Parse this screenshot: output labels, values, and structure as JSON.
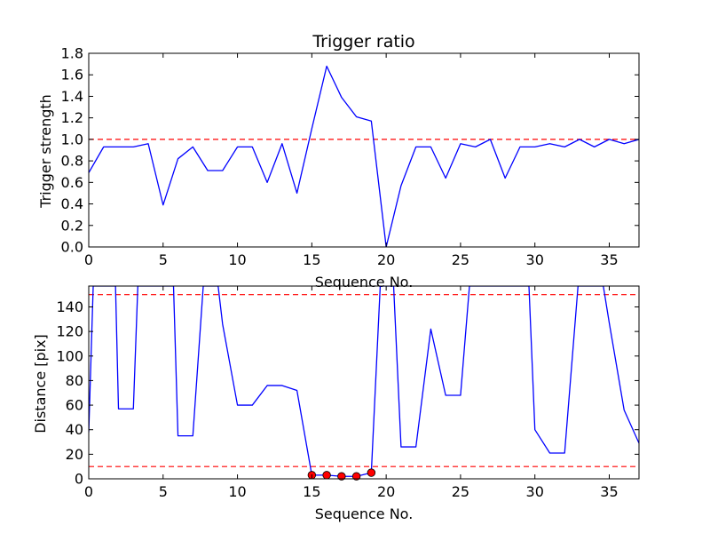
{
  "chart_data": [
    {
      "type": "line",
      "title": "Trigger ratio",
      "xlabel": "Sequence No.",
      "ylabel": "Trigger strength",
      "xlim": [
        0,
        37
      ],
      "ylim": [
        0,
        1.8
      ],
      "xticks": [
        0,
        5,
        10,
        15,
        20,
        25,
        30,
        35
      ],
      "yticks": [
        0.0,
        0.2,
        0.4,
        0.6,
        0.8,
        1.0,
        1.2,
        1.4,
        1.6,
        1.8
      ],
      "ytick_labels": [
        "0.0",
        "0.2",
        "0.4",
        "0.6",
        "0.8",
        "1.0",
        "1.2",
        "1.4",
        "1.6",
        "1.8"
      ],
      "series": [
        {
          "color": "#0000ff",
          "x": [
            0,
            1,
            2,
            3,
            4,
            5,
            6,
            7,
            8,
            9,
            10,
            11,
            12,
            13,
            14,
            15,
            16,
            17,
            18,
            19,
            20,
            21,
            22,
            23,
            24,
            25,
            26,
            27,
            28,
            29,
            30,
            31,
            32,
            33,
            34,
            35,
            36,
            37
          ],
          "y": [
            0.69,
            0.93,
            0.93,
            0.93,
            0.96,
            0.39,
            0.82,
            0.93,
            0.71,
            0.71,
            0.93,
            0.93,
            0.6,
            0.96,
            0.5,
            1.1,
            1.68,
            1.39,
            1.21,
            1.17,
            0.0,
            0.57,
            0.93,
            0.93,
            0.64,
            0.96,
            0.93,
            1.0,
            0.64,
            0.93,
            0.93,
            0.96,
            0.93,
            1.0,
            0.93,
            1.0,
            0.96,
            1.0
          ]
        }
      ],
      "reference_lines": [
        {
          "y": 1.0,
          "color": "#ff0000",
          "style": "dashed"
        }
      ]
    },
    {
      "type": "line",
      "xlabel": "Sequence No.",
      "ylabel": "Distance [pix]",
      "xlim": [
        0,
        37
      ],
      "ylim": [
        0,
        157
      ],
      "xticks": [
        0,
        5,
        10,
        15,
        20,
        25,
        30,
        35
      ],
      "yticks": [
        0,
        20,
        40,
        60,
        80,
        100,
        120,
        140
      ],
      "ytick_labels": [
        "0",
        "20",
        "40",
        "60",
        "80",
        "100",
        "120",
        "140"
      ],
      "series": [
        {
          "color": "#0000ff",
          "x": [
            0,
            0.3,
            1.8,
            2,
            3,
            3.3,
            5.7,
            6,
            7,
            7.7,
            8.7,
            9,
            10,
            11,
            12,
            13,
            14,
            15,
            16,
            17,
            18,
            19,
            19.6,
            20.5,
            21,
            22,
            23,
            24,
            25,
            25.6,
            29.6,
            30,
            31,
            32,
            32.9,
            34.6,
            35,
            36,
            37
          ],
          "y": [
            38,
            157,
            157,
            57,
            57,
            157,
            157,
            35,
            35,
            157,
            157,
            126,
            60,
            60,
            76,
            76,
            72,
            3,
            3,
            2,
            2,
            5,
            157,
            157,
            26,
            26,
            122,
            68,
            68,
            157,
            157,
            40,
            21,
            21,
            157,
            157,
            127,
            56,
            29
          ]
        }
      ],
      "markers": {
        "color": "#ff0000",
        "x": [
          15,
          16,
          17,
          18,
          19
        ],
        "y": [
          3,
          3,
          2,
          2,
          5
        ]
      },
      "reference_lines": [
        {
          "y": 150,
          "color": "#ff0000",
          "style": "dashed"
        },
        {
          "y": 10,
          "color": "#ff0000",
          "style": "dashed"
        }
      ]
    }
  ]
}
